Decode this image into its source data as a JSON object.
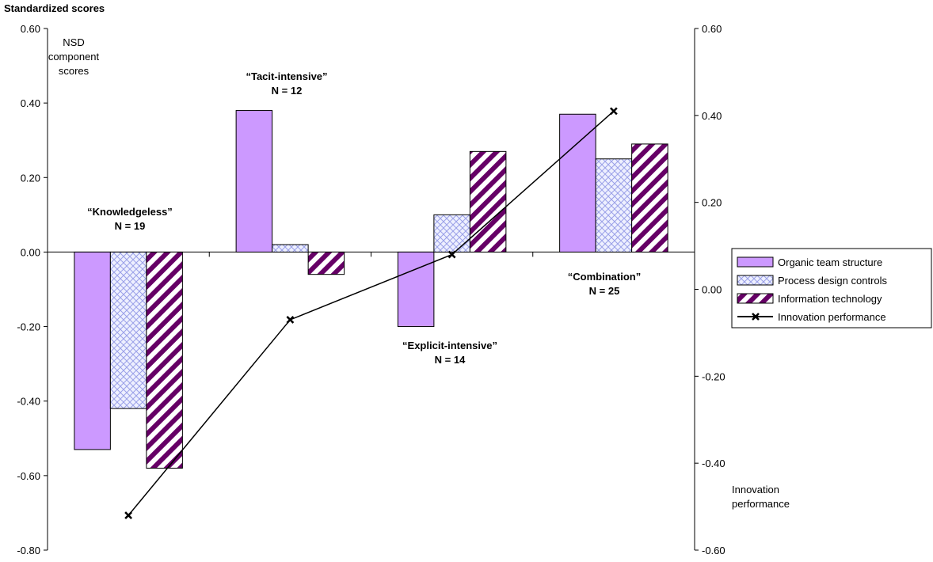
{
  "chart_data": {
    "type": "bar",
    "title": "Standardized scores",
    "left_axis_label": [
      "NSD",
      "component",
      "scores"
    ],
    "right_axis_label": [
      "Innovation",
      "performance"
    ],
    "left_ylim": [
      -0.8,
      0.6
    ],
    "left_ticks": [
      "0.60",
      "0.40",
      "0.20",
      "0.00",
      "-0.20",
      "-0.40",
      "-0.60",
      "-0.80"
    ],
    "right_ylim": [
      -0.6,
      0.6
    ],
    "right_ticks": [
      "0.60",
      "0.40",
      "0.20",
      "0.00",
      "-0.20",
      "-0.40",
      "-0.60"
    ],
    "categories": [
      "Knowledgeless",
      "Tacit-intensive",
      "Explicit-intensive",
      "Combination"
    ],
    "group_labels": [
      {
        "name": "“Knowledgeless”",
        "n": "N = 19"
      },
      {
        "name": "“Tacit-intensive”",
        "n": "N = 12"
      },
      {
        "name": "“Explicit-intensive”",
        "n": "N = 14"
      },
      {
        "name": "“Combination”",
        "n": "N = 25"
      }
    ],
    "series": [
      {
        "name": "Organic team structure",
        "axis": "left",
        "kind": "bar",
        "color": "#cc99ff",
        "values": [
          -0.53,
          0.38,
          -0.2,
          0.37
        ]
      },
      {
        "name": "Process design controls",
        "axis": "left",
        "kind": "bar",
        "color": "#ccccff",
        "values": [
          -0.42,
          0.02,
          0.1,
          0.25
        ]
      },
      {
        "name": "Information technology",
        "axis": "left",
        "kind": "bar",
        "color": "#660066",
        "values": [
          -0.58,
          -0.06,
          0.27,
          0.29
        ]
      },
      {
        "name": "Innovation performance",
        "axis": "right",
        "kind": "line",
        "color": "#000000",
        "values": [
          -0.52,
          -0.07,
          0.08,
          0.41
        ]
      }
    ],
    "legend_position": "right",
    "grid": false
  }
}
